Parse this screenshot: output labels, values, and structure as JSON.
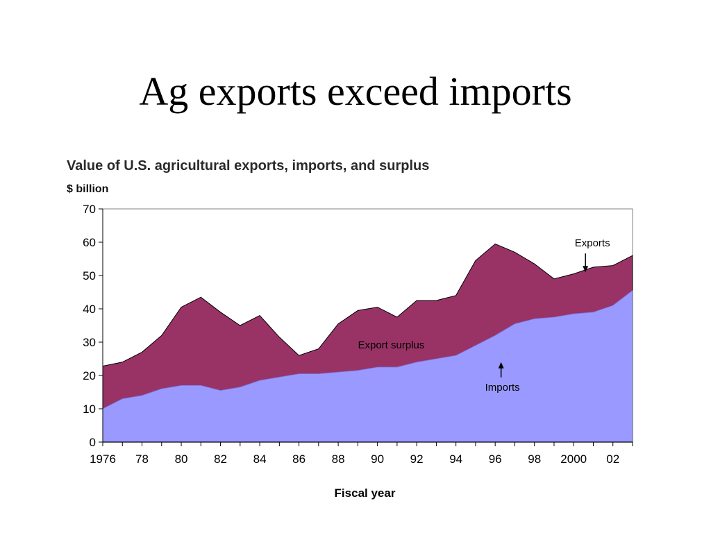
{
  "slide": {
    "title": "Ag exports exceed imports"
  },
  "chart_data": {
    "type": "area",
    "title": "Value of U.S. agricultural exports, imports, and surplus",
    "ylabel": "$ billion",
    "xlabel": "Fiscal year",
    "ylim": [
      0,
      70
    ],
    "xlim": [
      1976,
      2003
    ],
    "yticks": [
      0,
      10,
      20,
      30,
      40,
      50,
      60,
      70
    ],
    "xticks": [
      {
        "value": 1976,
        "label": "1976"
      },
      {
        "value": 1978,
        "label": "78"
      },
      {
        "value": 1980,
        "label": "80"
      },
      {
        "value": 1982,
        "label": "82"
      },
      {
        "value": 1984,
        "label": "84"
      },
      {
        "value": 1986,
        "label": "86"
      },
      {
        "value": 1988,
        "label": "88"
      },
      {
        "value": 1990,
        "label": "90"
      },
      {
        "value": 1992,
        "label": "92"
      },
      {
        "value": 1994,
        "label": "94"
      },
      {
        "value": 1996,
        "label": "96"
      },
      {
        "value": 1998,
        "label": "98"
      },
      {
        "value": 2000,
        "label": "2000"
      },
      {
        "value": 2002,
        "label": "02"
      }
    ],
    "x": [
      1976,
      1977,
      1978,
      1979,
      1980,
      1981,
      1982,
      1983,
      1984,
      1985,
      1986,
      1987,
      1988,
      1989,
      1990,
      1991,
      1992,
      1993,
      1994,
      1995,
      1996,
      1997,
      1998,
      1999,
      2000,
      2001,
      2002,
      2003
    ],
    "series": [
      {
        "name": "Exports",
        "color": "#993366",
        "values": [
          22.8,
          24.0,
          27.0,
          32.0,
          40.5,
          43.5,
          39.0,
          35.0,
          38.0,
          31.5,
          26.0,
          28.0,
          35.5,
          39.5,
          40.5,
          37.5,
          42.5,
          42.5,
          44.0,
          54.5,
          59.5,
          57.0,
          53.5,
          49.0,
          50.5,
          52.5,
          53.0,
          56.0
        ]
      },
      {
        "name": "Imports",
        "color": "#9999ff",
        "values": [
          10.0,
          13.0,
          14.0,
          16.0,
          17.0,
          17.0,
          15.5,
          16.5,
          18.5,
          19.5,
          20.5,
          20.5,
          21.0,
          21.5,
          22.5,
          22.5,
          24.0,
          25.0,
          26.0,
          29.0,
          32.0,
          35.5,
          37.0,
          37.5,
          38.5,
          39.0,
          41.0,
          45.5
        ]
      }
    ],
    "annotations": [
      {
        "text": "Exports",
        "target_x": 2000.6,
        "target_y": 51.0,
        "arrow": "down"
      },
      {
        "text": "Export surplus",
        "target_x": 1990.7,
        "target_y": 29.0,
        "arrow": "none"
      },
      {
        "text": "Imports",
        "target_x": 1996.3,
        "target_y": 24.0,
        "arrow": "up"
      }
    ],
    "grid": false,
    "colors": {
      "surplus": "#993366",
      "imports": "#9999ff",
      "axis": "#808080"
    }
  }
}
